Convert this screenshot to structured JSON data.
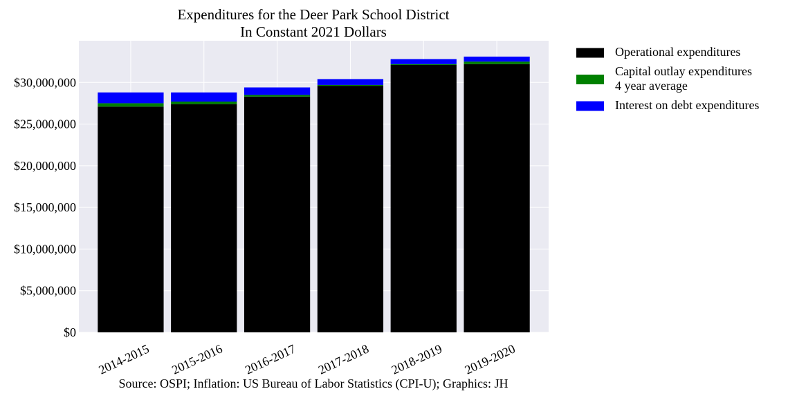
{
  "chart_data": {
    "type": "bar",
    "stacked": true,
    "title": "Expenditures for the Deer Park School District",
    "subtitle": "In Constant 2021 Dollars",
    "xlabel": "",
    "ylabel": "",
    "categories": [
      "2014-2015",
      "2015-2016",
      "2016-2017",
      "2017-2018",
      "2018-2019",
      "2019-2020"
    ],
    "ylim": [
      0,
      35000000
    ],
    "yticks": [
      0,
      5000000,
      10000000,
      15000000,
      20000000,
      25000000,
      30000000
    ],
    "ytick_labels": [
      "$0",
      "$5,000,000",
      "$10,000,000",
      "$15,000,000",
      "$20,000,000",
      "$25,000,000",
      "$30,000,000"
    ],
    "grid": true,
    "legend_position": "outside-right",
    "series": [
      {
        "name": "Operational expenditures",
        "color": "#000000",
        "values": [
          27100000,
          27400000,
          28300000,
          29600000,
          32100000,
          32200000
        ]
      },
      {
        "name": "Capital outlay expenditures\n4 year average",
        "color": "#008000",
        "values": [
          400000,
          300000,
          200000,
          100000,
          100000,
          300000
        ]
      },
      {
        "name": "Interest on debt expenditures",
        "color": "#0000ff",
        "values": [
          1300000,
          1100000,
          900000,
          700000,
          600000,
          600000
        ]
      }
    ],
    "annotation": "Source: OSPI; Inflation: US Bureau of Labor Statistics (CPI-U); Graphics: JH"
  }
}
